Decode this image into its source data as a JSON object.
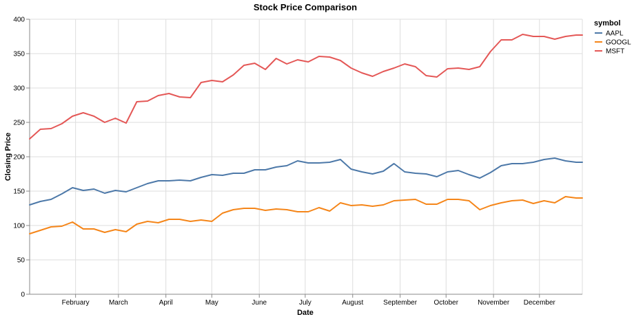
{
  "chart_data": {
    "type": "line",
    "title": "Stock Price Comparison",
    "xlabel": "Date",
    "ylabel": "Closing Price",
    "ylim": [
      0,
      400
    ],
    "y_ticks": [
      0,
      50,
      100,
      150,
      200,
      250,
      300,
      350,
      400
    ],
    "xlim": [
      "2023-01-02",
      "2023-12-29"
    ],
    "x_tick_labels": [
      {
        "date": "2023-02-01",
        "label": "February"
      },
      {
        "date": "2023-03-01",
        "label": "March"
      },
      {
        "date": "2023-04-01",
        "label": "April"
      },
      {
        "date": "2023-05-01",
        "label": "May"
      },
      {
        "date": "2023-06-01",
        "label": "June"
      },
      {
        "date": "2023-07-01",
        "label": "July"
      },
      {
        "date": "2023-08-01",
        "label": "August"
      },
      {
        "date": "2023-09-01",
        "label": "September"
      },
      {
        "date": "2023-10-01",
        "label": "October"
      },
      {
        "date": "2023-11-01",
        "label": "November"
      },
      {
        "date": "2023-12-01",
        "label": "December"
      }
    ],
    "grid": true,
    "legend": {
      "title": "symbol",
      "placement": "right"
    },
    "x": [
      "2023-01-02",
      "2023-01-09",
      "2023-01-16",
      "2023-01-23",
      "2023-01-30",
      "2023-02-06",
      "2023-02-13",
      "2023-02-20",
      "2023-02-27",
      "2023-03-06",
      "2023-03-13",
      "2023-03-20",
      "2023-03-27",
      "2023-04-03",
      "2023-04-10",
      "2023-04-17",
      "2023-04-24",
      "2023-05-01",
      "2023-05-08",
      "2023-05-15",
      "2023-05-22",
      "2023-05-29",
      "2023-06-05",
      "2023-06-12",
      "2023-06-19",
      "2023-06-26",
      "2023-07-03",
      "2023-07-10",
      "2023-07-17",
      "2023-07-24",
      "2023-07-31",
      "2023-08-07",
      "2023-08-14",
      "2023-08-21",
      "2023-08-28",
      "2023-09-04",
      "2023-09-11",
      "2023-09-18",
      "2023-09-25",
      "2023-10-02",
      "2023-10-09",
      "2023-10-16",
      "2023-10-23",
      "2023-10-30",
      "2023-11-06",
      "2023-11-13",
      "2023-11-20",
      "2023-11-27",
      "2023-12-04",
      "2023-12-11",
      "2023-12-18",
      "2023-12-25",
      "2023-12-29"
    ],
    "series": [
      {
        "name": "AAPL",
        "color": "#4c78a8",
        "values": [
          130,
          135,
          138,
          146,
          155,
          151,
          153,
          147,
          151,
          149,
          155,
          161,
          165,
          165,
          166,
          165,
          170,
          174,
          173,
          176,
          176,
          181,
          181,
          185,
          187,
          194,
          191,
          191,
          192,
          196,
          182,
          178,
          175,
          179,
          190,
          178,
          176,
          175,
          171,
          178,
          180,
          174,
          169,
          177,
          187,
          190,
          190,
          192,
          196,
          198,
          194,
          192,
          192
        ]
      },
      {
        "name": "GOOGL",
        "color": "#f58518",
        "values": [
          88,
          93,
          98,
          99,
          105,
          95,
          95,
          90,
          94,
          91,
          102,
          106,
          104,
          109,
          109,
          106,
          108,
          106,
          118,
          123,
          125,
          125,
          122,
          124,
          123,
          120,
          120,
          126,
          121,
          133,
          129,
          130,
          128,
          130,
          136,
          137,
          138,
          131,
          131,
          138,
          138,
          136,
          123,
          129,
          133,
          136,
          137,
          132,
          136,
          133,
          142,
          140,
          140
        ]
      },
      {
        "name": "MSFT",
        "color": "#e45756",
        "values": [
          226,
          240,
          241,
          248,
          259,
          264,
          259,
          250,
          256,
          249,
          280,
          281,
          289,
          292,
          287,
          286,
          308,
          311,
          309,
          319,
          333,
          336,
          327,
          343,
          335,
          341,
          338,
          346,
          345,
          340,
          329,
          322,
          317,
          324,
          329,
          335,
          331,
          318,
          316,
          328,
          329,
          327,
          331,
          353,
          370,
          370,
          378,
          375,
          375,
          371,
          375,
          377,
          377
        ]
      }
    ]
  }
}
